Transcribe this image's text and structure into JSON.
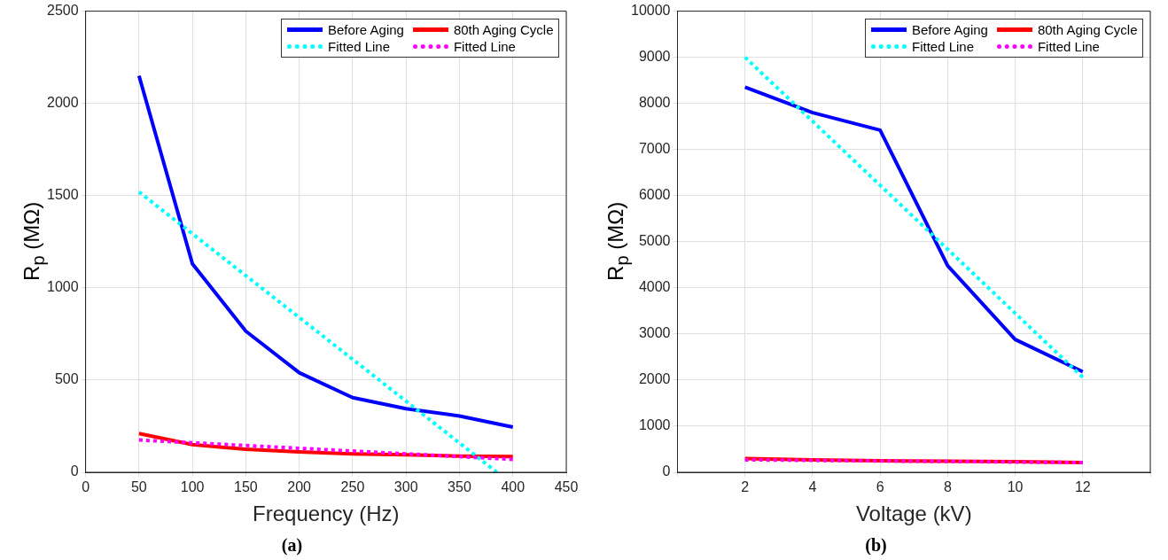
{
  "chart_data": [
    {
      "type": "line",
      "title": "(a)",
      "xlabel": "Frequency (Hz)",
      "ylabel": "R$_{p}$ (MΩ)",
      "xlim": [
        0,
        450
      ],
      "xticks": [
        0,
        50,
        100,
        150,
        200,
        250,
        300,
        350,
        400,
        450
      ],
      "ylim": [
        0,
        2500
      ],
      "yticks": [
        0,
        500,
        1000,
        1500,
        2000,
        2500
      ],
      "grid": true,
      "legend": "top right",
      "series": [
        {
          "name": "Before Aging",
          "color": "#0000ff",
          "line_style": "solid",
          "x": [
            50,
            100,
            150,
            200,
            250,
            300,
            350,
            400
          ],
          "values": [
            2150,
            1130,
            765,
            540,
            405,
            345,
            305,
            245
          ]
        },
        {
          "name": "80th Aging Cycle",
          "color": "#ff0000",
          "line_style": "solid",
          "x": [
            50,
            100,
            150,
            200,
            250,
            300,
            350,
            400
          ],
          "values": [
            210,
            150,
            125,
            110,
            100,
            95,
            88,
            85
          ]
        },
        {
          "name": "Fitted Line",
          "color": "#00ffff",
          "line_style": "dotted",
          "x": [
            50,
            385
          ],
          "values": [
            1520,
            0
          ]
        },
        {
          "name": "Fitted Line",
          "color": "#ff00ff",
          "line_style": "dotted",
          "x": [
            50,
            400
          ],
          "values": [
            175,
            70
          ]
        }
      ]
    },
    {
      "type": "line",
      "title": "(b)",
      "xlabel": "Voltage (kV)",
      "ylabel": "R$_{p}$ (MΩ)",
      "xlim": [
        0,
        14
      ],
      "xticks": [
        {
          "value": 0,
          "label": null
        },
        2,
        4,
        6,
        8,
        10,
        12,
        {
          "value": 14,
          "label": null
        }
      ],
      "ylim": [
        0,
        10000
      ],
      "yticks": [
        0,
        1000,
        2000,
        3000,
        4000,
        5000,
        6000,
        7000,
        8000,
        9000,
        10000
      ],
      "grid": true,
      "legend": "top right",
      "series": [
        {
          "name": "Before Aging",
          "color": "#0000ff",
          "line_style": "solid",
          "x": [
            2,
            4,
            6,
            8,
            10,
            12
          ],
          "values": [
            8350,
            7800,
            7420,
            4480,
            2880,
            2180
          ]
        },
        {
          "name": "80th Aging Cycle",
          "color": "#ff0000",
          "line_style": "solid",
          "x": [
            2,
            4,
            6,
            8,
            10,
            12
          ],
          "values": [
            300,
            270,
            250,
            240,
            230,
            210
          ]
        },
        {
          "name": "Fitted Line",
          "color": "#00ffff",
          "line_style": "dotted",
          "x": [
            2,
            12
          ],
          "values": [
            9000,
            2060
          ]
        },
        {
          "name": "Fitted Line",
          "color": "#ff00ff",
          "line_style": "dotted",
          "x": [
            2,
            12
          ],
          "values": [
            270,
            210
          ]
        }
      ]
    }
  ]
}
